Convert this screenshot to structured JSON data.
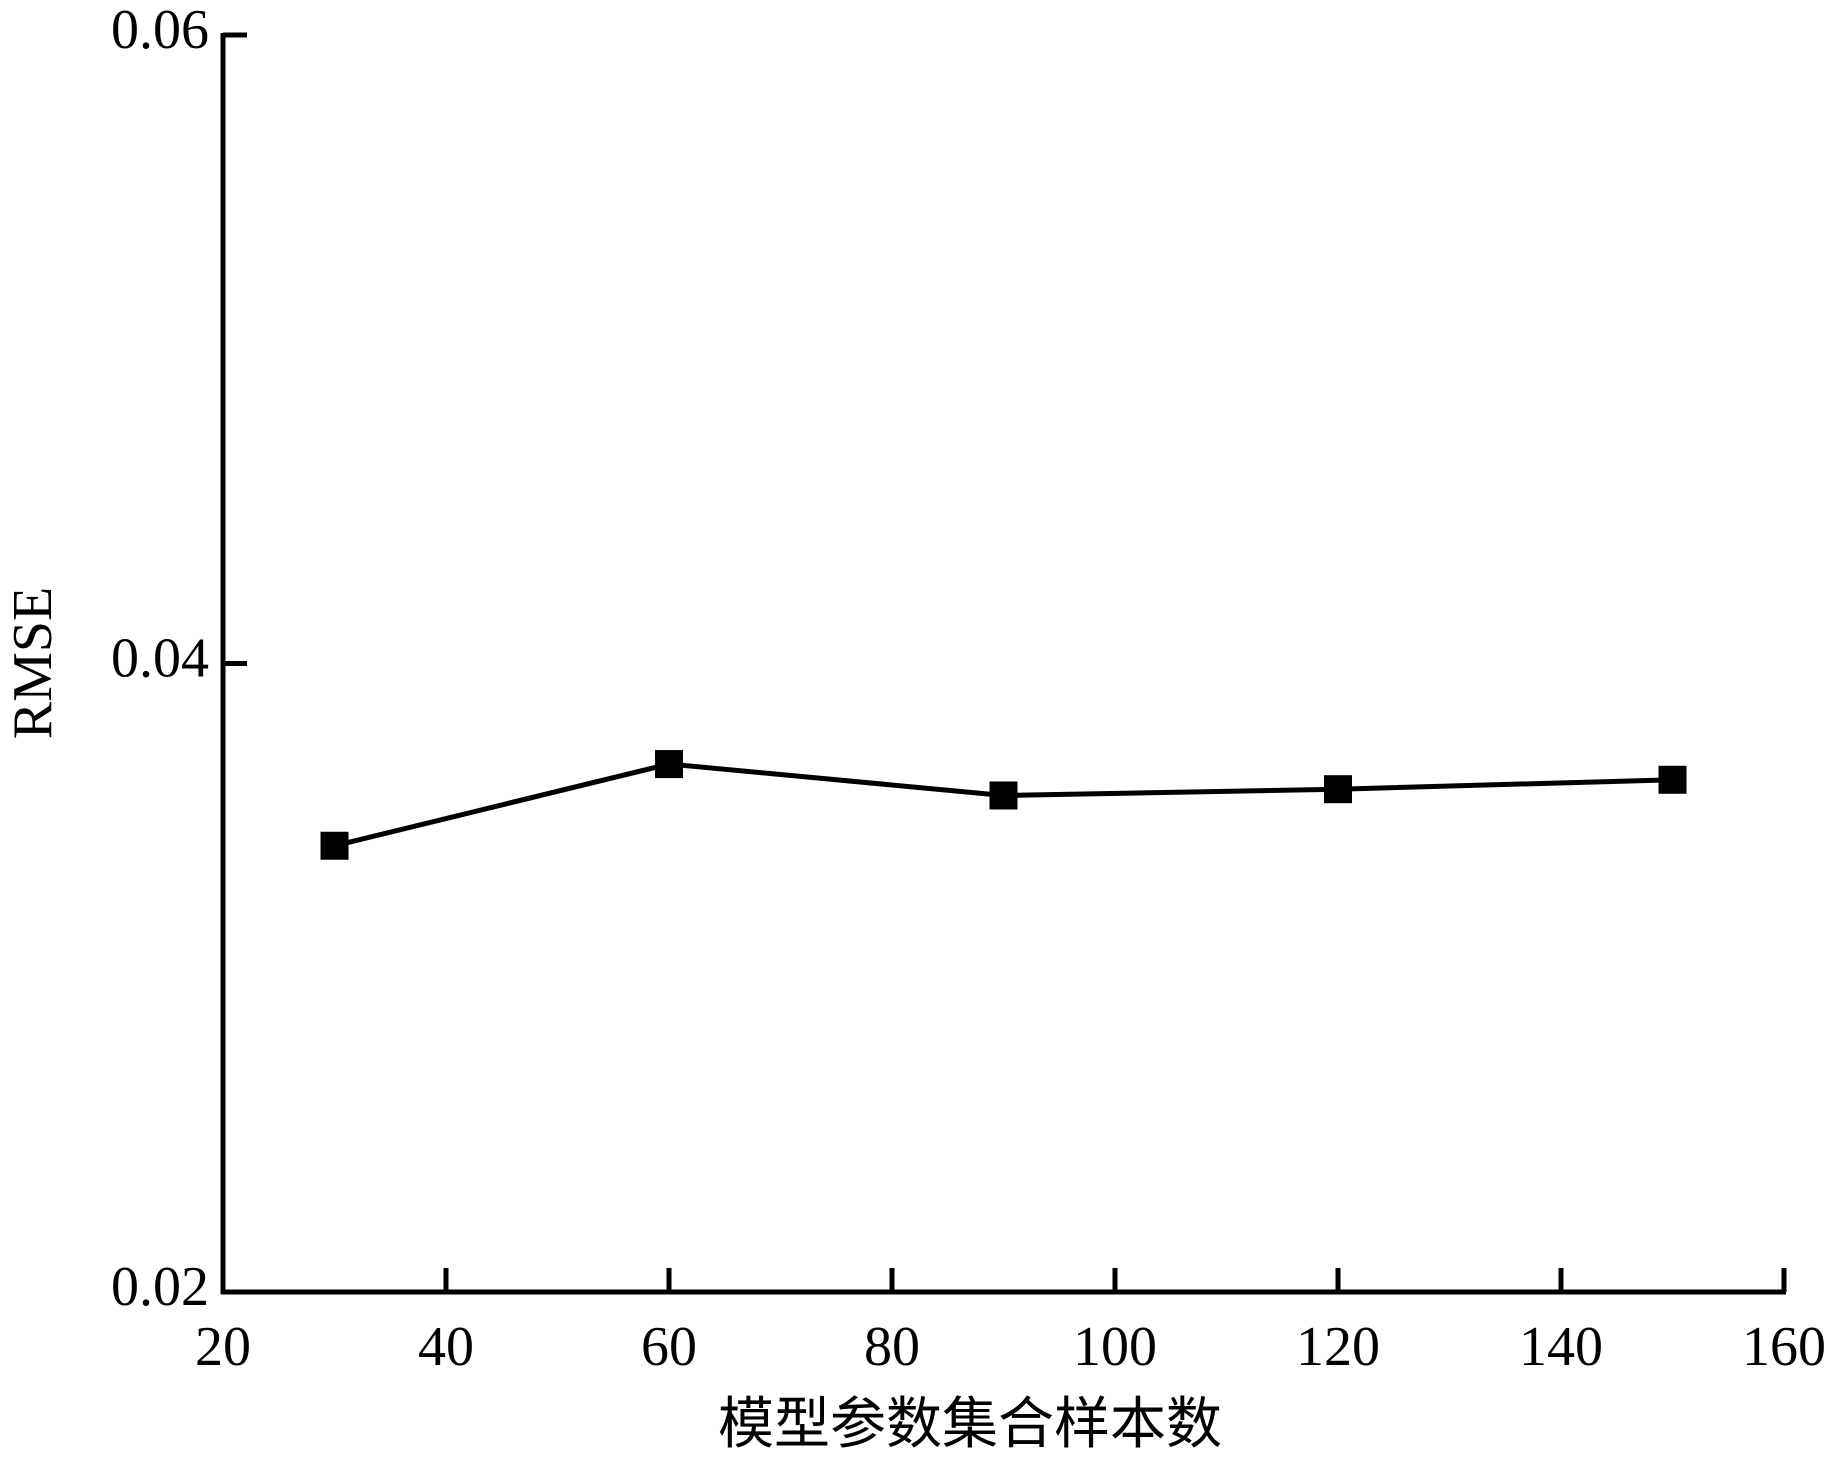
{
  "chart_data": {
    "type": "line",
    "x_label": "模型参数集合样本数",
    "y_label": "RMSE",
    "x": [
      30,
      60,
      90,
      120,
      150
    ],
    "series": [
      {
        "color": "#000000",
        "values": [
          0.0342,
          0.0368,
          0.0358,
          0.036,
          0.0363
        ]
      }
    ],
    "xlim": [
      20,
      160
    ],
    "xticks": [
      20,
      40,
      60,
      80,
      100,
      120,
      140,
      160
    ],
    "ylim": [
      0.02,
      0.06
    ],
    "yticks": [
      0.02,
      0.04,
      0.06
    ],
    "grid": false
  }
}
